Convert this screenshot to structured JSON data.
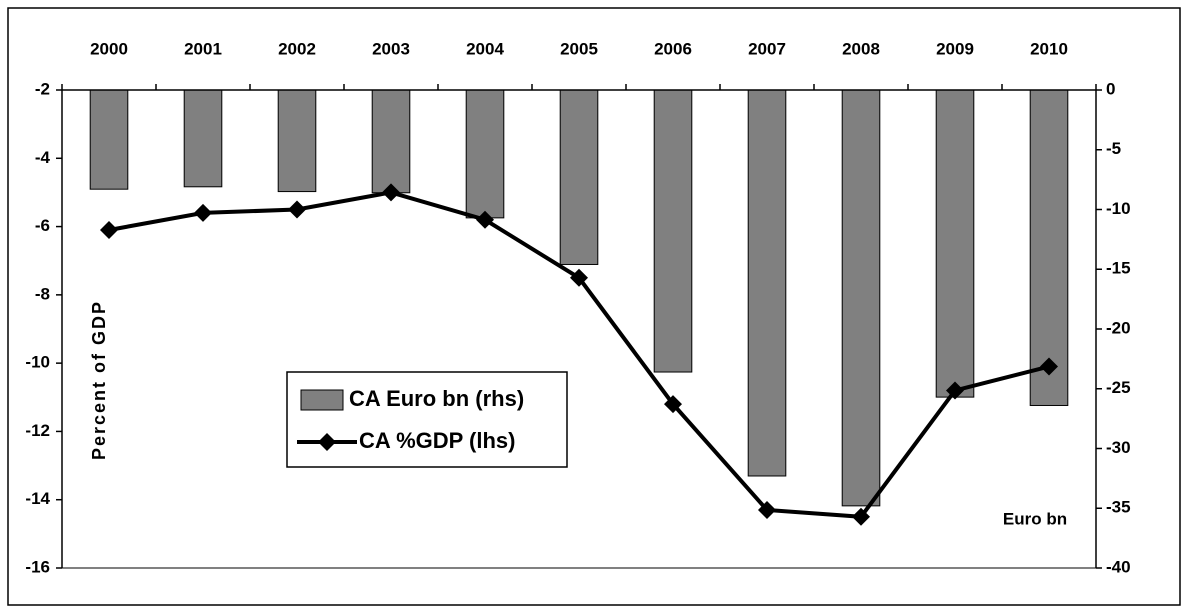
{
  "chart_data": {
    "type": "bar-line",
    "categories": [
      "2000",
      "2001",
      "2002",
      "2003",
      "2004",
      "2005",
      "2006",
      "2007",
      "2008",
      "2009",
      "2010"
    ],
    "series": [
      {
        "name": "CA Euro bn (rhs)",
        "type": "bar",
        "axis": "y2",
        "color": "#808080",
        "values": [
          -8.3,
          -8.1,
          -8.5,
          -8.6,
          -10.7,
          -14.6,
          -23.6,
          -32.3,
          -34.8,
          -25.7,
          -26.4
        ]
      },
      {
        "name": "CA %GDP (lhs)",
        "type": "line",
        "axis": "y",
        "color": "#000000",
        "values": [
          -6.1,
          -5.6,
          -5.5,
          -5.0,
          -5.8,
          -7.5,
          -11.2,
          -14.3,
          -14.5,
          -10.8,
          -10.1
        ]
      }
    ],
    "y_label": "Percent of GDP",
    "y2_label": "Euro bn",
    "ylim": [
      -16,
      -2
    ],
    "yticks": [
      -2,
      -4,
      -6,
      -8,
      -10,
      -12,
      -14,
      -16
    ],
    "y2lim": [
      -40,
      0
    ],
    "y2ticks": [
      0,
      -5,
      -10,
      -15,
      -20,
      -25,
      -30,
      -35,
      -40
    ],
    "legend": "center left"
  }
}
